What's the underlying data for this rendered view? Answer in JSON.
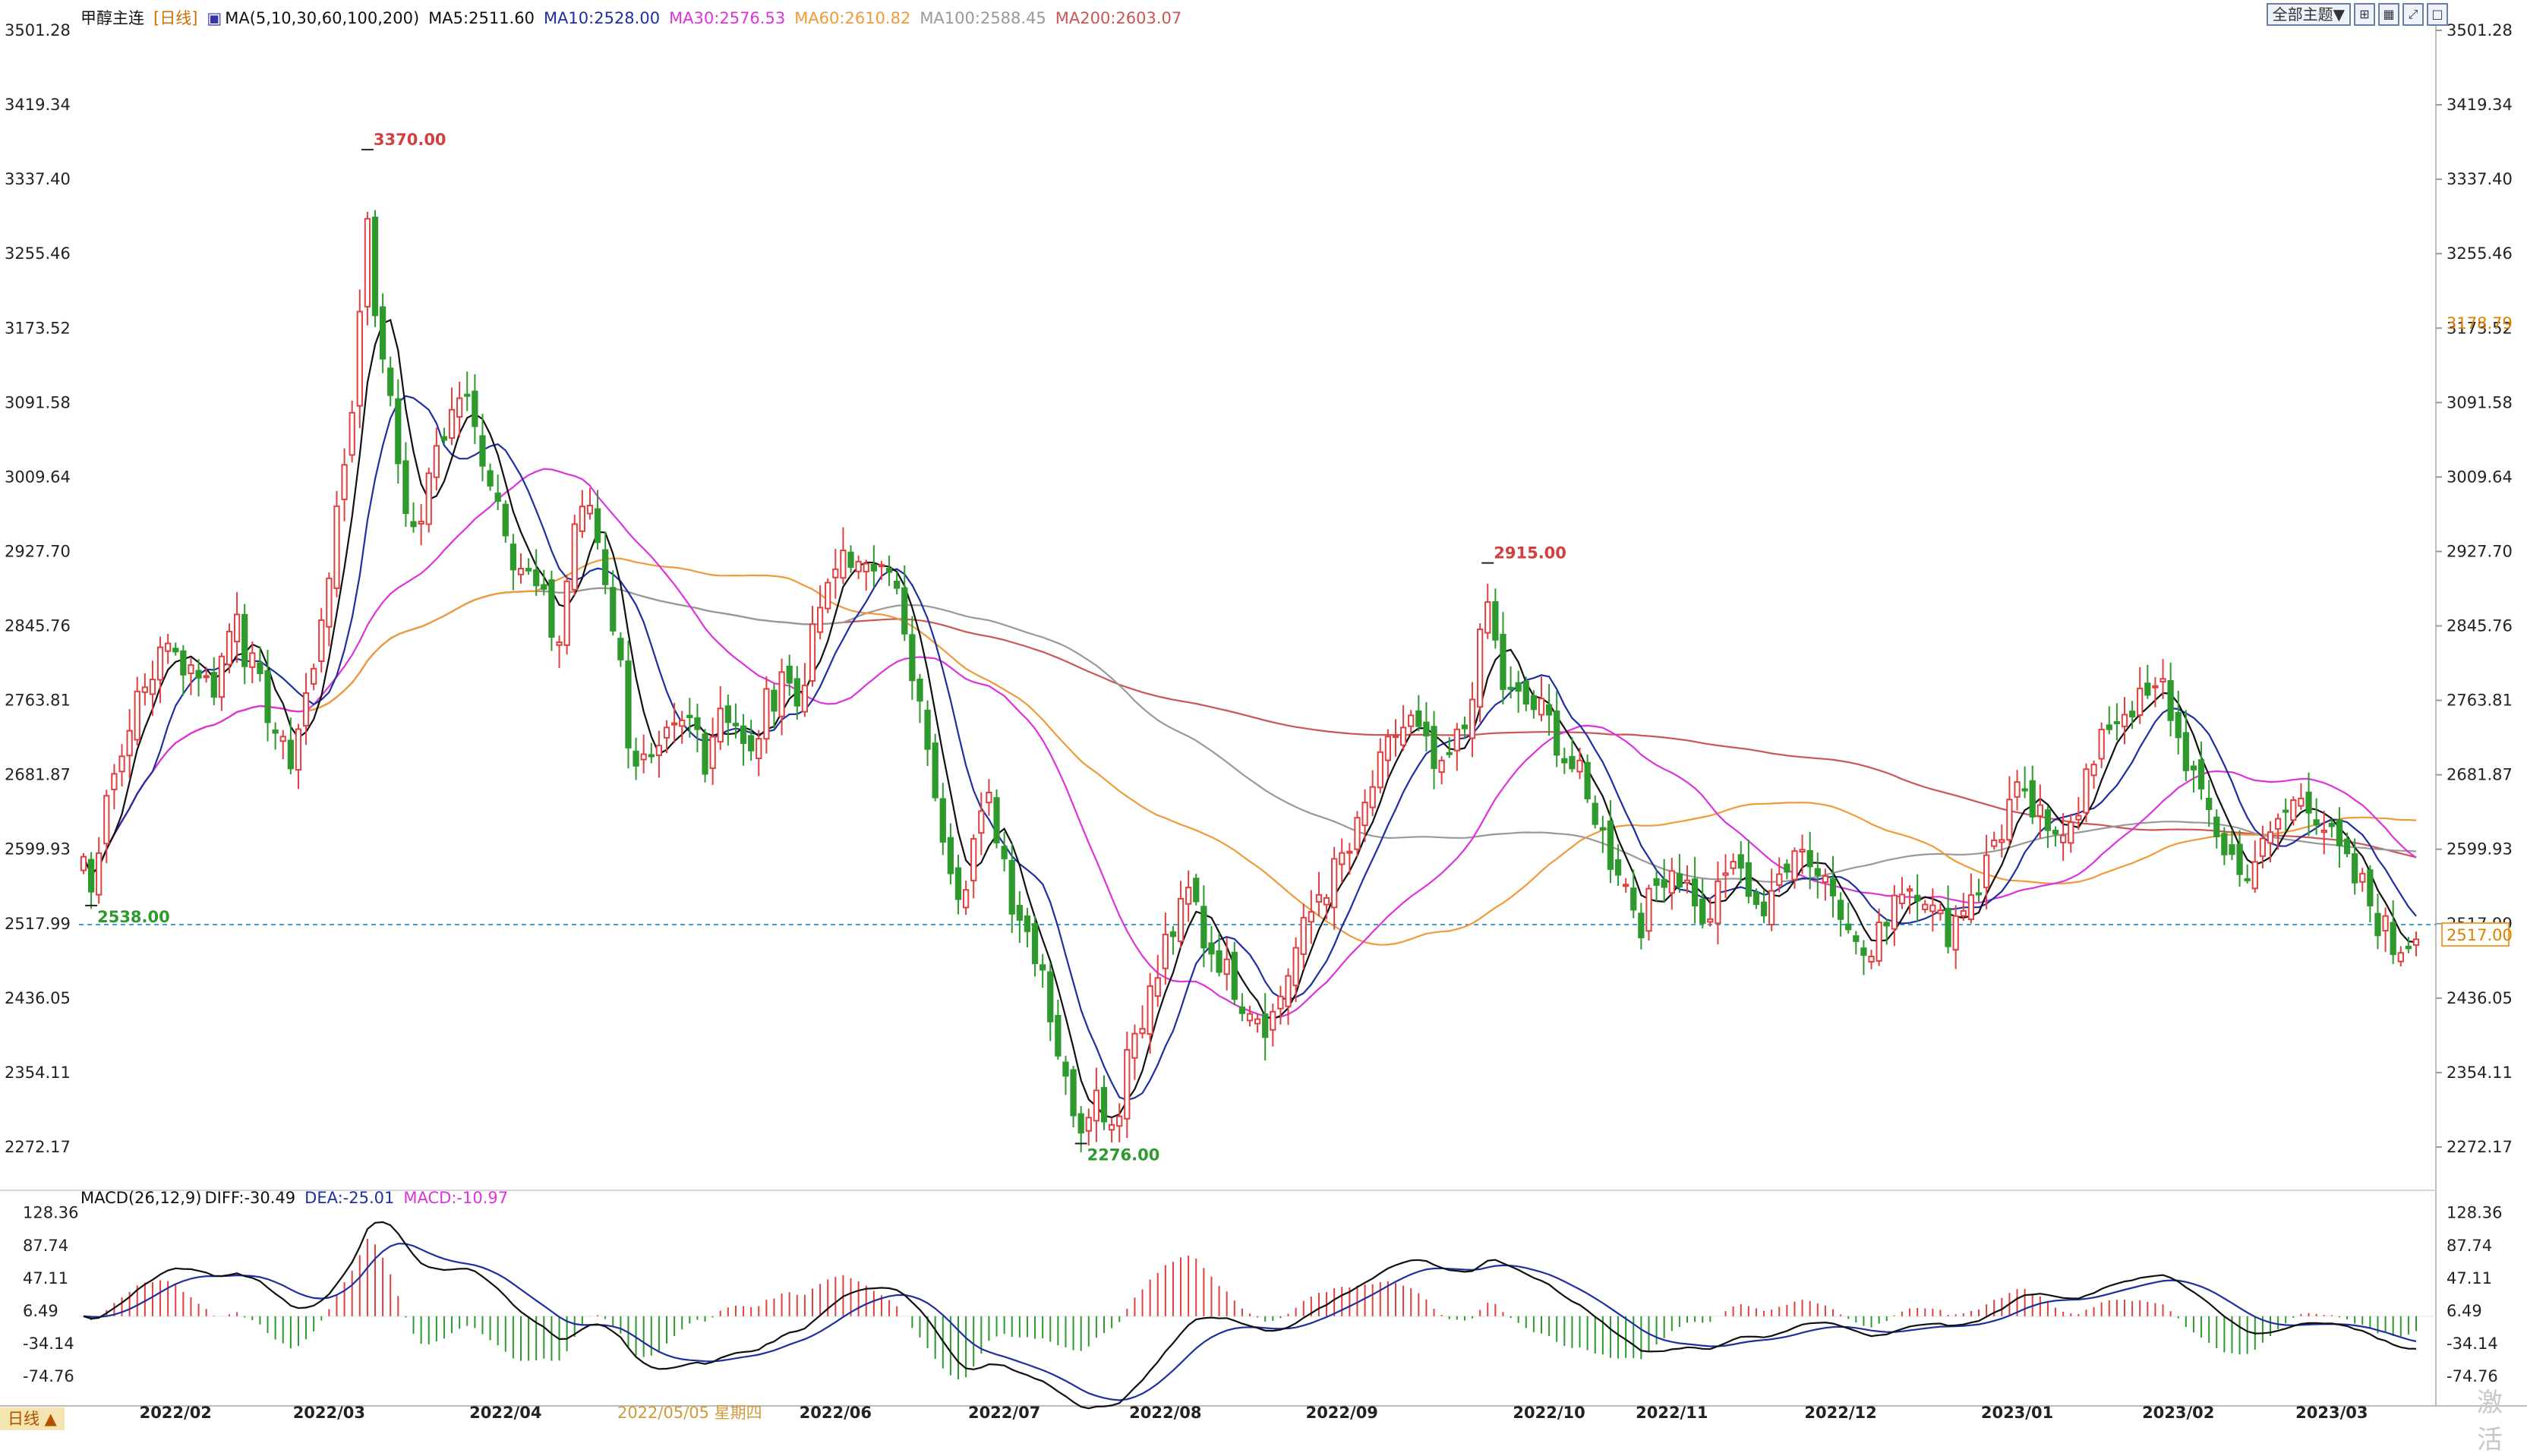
{
  "instrument": {
    "name": "甲醇主连",
    "period_label": "[日线]"
  },
  "price_legend": {
    "ma_label": "MA(5,10,30,60,100,200)",
    "ma5": "MA5:2511.60",
    "ma10": "MA10:2528.00",
    "ma30": "MA30:2576.53",
    "ma60": "MA60:2610.82",
    "ma100": "MA100:2588.45",
    "ma200": "MA200:2603.07"
  },
  "macd_legend": {
    "label": "MACD(26,12,9)",
    "diff": "DIFF:-30.49",
    "dea": "DEA:-25.01",
    "macd": "MACD:-10.97"
  },
  "toolbar": {
    "theme_button": "全部主题▼",
    "icons": [
      "layout-icon",
      "grid-icon",
      "expand-icon",
      "fullscreen-icon"
    ]
  },
  "bottom_tab": "日线 ▲",
  "watermark": "激活",
  "colors": {
    "up": "#e04040",
    "down": "#2e9a2e",
    "ma5": "#111111",
    "ma10": "#1f2f9f",
    "ma30": "#dd33dd",
    "ma60": "#f09a3a",
    "ma100": "#999999",
    "ma200": "#cc5555",
    "grid_cursor": "#3f9fd0"
  },
  "chart_data": [
    {
      "type": "candlestick",
      "title": "甲醇主连 [日线]",
      "ylim": [
        2231.2,
        3501.28
      ],
      "y_ticks": [
        "3501.28",
        "3419.34",
        "3337.40",
        "3255.46",
        "3173.52",
        "3091.58",
        "3009.64",
        "2927.70",
        "2845.76",
        "2763.81",
        "2681.87",
        "2599.93",
        "2517.99",
        "2436.05",
        "2354.11",
        "2272.17"
      ],
      "x_ticks": [
        "2022/02",
        "2022/03",
        "2022/04",
        "2022/05/05 星期四",
        "2022/06",
        "2022/07",
        "2022/08",
        "2022/09",
        "2022/10",
        "2022/11",
        "2022/12",
        "2023/01",
        "2023/02",
        "2023/03"
      ],
      "annotations": {
        "high_3370": "3370.00",
        "high_2915": "2915.00",
        "low_2276": "2276.00",
        "low_2538": "2538.00"
      },
      "right_labels": {
        "overlay_tick": "3178.79",
        "last_price": "2517.00",
        "last_tick": "2517.99"
      },
      "anchors": [
        {
          "date": "2022-01-14",
          "close": 2592
        },
        {
          "date": "2022-01-17",
          "close": 2551
        },
        {
          "date": "2022-01-19",
          "close": 2668
        },
        {
          "date": "2022-01-21",
          "close": 2702
        },
        {
          "date": "2022-01-25",
          "close": 2760
        },
        {
          "date": "2022-01-27",
          "close": 2790
        },
        {
          "date": "2022-01-28",
          "close": 2830
        },
        {
          "date": "2022-02-08",
          "close": 2780
        },
        {
          "date": "2022-02-11",
          "close": 2870
        },
        {
          "date": "2022-02-15",
          "close": 2800
        },
        {
          "date": "2022-02-18",
          "close": 2730
        },
        {
          "date": "2022-02-22",
          "close": 2700
        },
        {
          "date": "2022-02-24",
          "close": 2770
        },
        {
          "date": "2022-02-28",
          "close": 2860
        },
        {
          "date": "2022-03-02",
          "close": 2960
        },
        {
          "date": "2022-03-04",
          "close": 3090
        },
        {
          "date": "2022-03-07",
          "close": 3190
        },
        {
          "date": "2022-03-08",
          "close": 3300
        },
        {
          "date": "2022-03-09",
          "close": 3200
        },
        {
          "date": "2022-03-10",
          "close": 3130
        },
        {
          "date": "2022-03-14",
          "close": 3030
        },
        {
          "date": "2022-03-16",
          "close": 2940
        },
        {
          "date": "2022-03-18",
          "close": 3000
        },
        {
          "date": "2022-03-22",
          "close": 3060
        },
        {
          "date": "2022-03-24",
          "close": 3100
        },
        {
          "date": "2022-03-28",
          "close": 3060
        },
        {
          "date": "2022-03-30",
          "close": 3010
        },
        {
          "date": "2022-04-01",
          "close": 2960
        },
        {
          "date": "2022-04-06",
          "close": 2900
        },
        {
          "date": "2022-04-08",
          "close": 2870
        },
        {
          "date": "2022-04-12",
          "close": 2830
        },
        {
          "date": "2022-04-14",
          "close": 2960
        },
        {
          "date": "2022-04-18",
          "close": 2980
        },
        {
          "date": "2022-04-20",
          "close": 2900
        },
        {
          "date": "2022-04-22",
          "close": 2800
        },
        {
          "date": "2022-04-26",
          "close": 2700
        },
        {
          "date": "2022-04-28",
          "close": 2690
        },
        {
          "date": "2022-05-05",
          "close": 2740
        },
        {
          "date": "2022-05-09",
          "close": 2700
        },
        {
          "date": "2022-05-11",
          "close": 2760
        },
        {
          "date": "2022-05-13",
          "close": 2740
        },
        {
          "date": "2022-05-17",
          "close": 2700
        },
        {
          "date": "2022-05-19",
          "close": 2760
        },
        {
          "date": "2022-05-23",
          "close": 2800
        },
        {
          "date": "2022-05-25",
          "close": 2760
        },
        {
          "date": "2022-05-27",
          "close": 2830
        },
        {
          "date": "2022-05-31",
          "close": 2880
        },
        {
          "date": "2022-06-02",
          "close": 2930
        },
        {
          "date": "2022-06-07",
          "close": 2900
        },
        {
          "date": "2022-06-09",
          "close": 2930
        },
        {
          "date": "2022-06-13",
          "close": 2880
        },
        {
          "date": "2022-06-15",
          "close": 2780
        },
        {
          "date": "2022-06-17",
          "close": 2720
        },
        {
          "date": "2022-06-21",
          "close": 2620
        },
        {
          "date": "2022-06-23",
          "close": 2560
        },
        {
          "date": "2022-06-27",
          "close": 2610
        },
        {
          "date": "2022-06-29",
          "close": 2650
        },
        {
          "date": "2022-07-01",
          "close": 2590
        },
        {
          "date": "2022-07-05",
          "close": 2530
        },
        {
          "date": "2022-07-07",
          "close": 2490
        },
        {
          "date": "2022-07-11",
          "close": 2420
        },
        {
          "date": "2022-07-13",
          "close": 2340
        },
        {
          "date": "2022-07-15",
          "close": 2300
        },
        {
          "date": "2022-07-19",
          "close": 2330
        },
        {
          "date": "2022-07-21",
          "close": 2300
        },
        {
          "date": "2022-07-25",
          "close": 2380
        },
        {
          "date": "2022-07-27",
          "close": 2420
        },
        {
          "date": "2022-07-29",
          "close": 2460
        },
        {
          "date": "2022-08-02",
          "close": 2510
        },
        {
          "date": "2022-08-04",
          "close": 2550
        },
        {
          "date": "2022-08-08",
          "close": 2500
        },
        {
          "date": "2022-08-10",
          "close": 2480
        },
        {
          "date": "2022-08-12",
          "close": 2450
        },
        {
          "date": "2022-08-16",
          "close": 2430
        },
        {
          "date": "2022-08-18",
          "close": 2410
        },
        {
          "date": "2022-08-22",
          "close": 2440
        },
        {
          "date": "2022-08-24",
          "close": 2490
        },
        {
          "date": "2022-08-26",
          "close": 2530
        },
        {
          "date": "2022-08-30",
          "close": 2560
        },
        {
          "date": "2022-09-01",
          "close": 2590
        },
        {
          "date": "2022-09-05",
          "close": 2620
        },
        {
          "date": "2022-09-07",
          "close": 2670
        },
        {
          "date": "2022-09-09",
          "close": 2710
        },
        {
          "date": "2022-09-14",
          "close": 2740
        },
        {
          "date": "2022-09-16",
          "close": 2710
        },
        {
          "date": "2022-09-20",
          "close": 2680
        },
        {
          "date": "2022-09-22",
          "close": 2720
        },
        {
          "date": "2022-09-26",
          "close": 2780
        },
        {
          "date": "2022-09-28",
          "close": 2870
        },
        {
          "date": "2022-09-30",
          "close": 2780
        },
        {
          "date": "2022-10-10",
          "close": 2740
        },
        {
          "date": "2022-10-12",
          "close": 2700
        },
        {
          "date": "2022-10-14",
          "close": 2680
        },
        {
          "date": "2022-10-18",
          "close": 2640
        },
        {
          "date": "2022-10-20",
          "close": 2590
        },
        {
          "date": "2022-10-24",
          "close": 2560
        },
        {
          "date": "2022-10-26",
          "close": 2520
        },
        {
          "date": "2022-10-28",
          "close": 2560
        },
        {
          "date": "2022-11-01",
          "close": 2580
        },
        {
          "date": "2022-11-03",
          "close": 2560
        },
        {
          "date": "2022-11-07",
          "close": 2510
        },
        {
          "date": "2022-11-09",
          "close": 2550
        },
        {
          "date": "2022-11-11",
          "close": 2590
        },
        {
          "date": "2022-11-15",
          "close": 2560
        },
        {
          "date": "2022-11-17",
          "close": 2530
        },
        {
          "date": "2022-11-21",
          "close": 2570
        },
        {
          "date": "2022-11-23",
          "close": 2610
        },
        {
          "date": "2022-11-25",
          "close": 2590
        },
        {
          "date": "2022-11-29",
          "close": 2570
        },
        {
          "date": "2022-12-01",
          "close": 2540
        },
        {
          "date": "2022-12-05",
          "close": 2490
        },
        {
          "date": "2022-12-07",
          "close": 2480
        },
        {
          "date": "2022-12-09",
          "close": 2530
        },
        {
          "date": "2022-12-13",
          "close": 2560
        },
        {
          "date": "2022-12-15",
          "close": 2560
        },
        {
          "date": "2022-12-19",
          "close": 2530
        },
        {
          "date": "2022-12-21",
          "close": 2510
        },
        {
          "date": "2022-12-23",
          "close": 2540
        },
        {
          "date": "2022-12-27",
          "close": 2560
        },
        {
          "date": "2022-12-29",
          "close": 2610
        },
        {
          "date": "2023-01-03",
          "close": 2660
        },
        {
          "date": "2023-01-05",
          "close": 2640
        },
        {
          "date": "2023-01-09",
          "close": 2610
        },
        {
          "date": "2023-01-11",
          "close": 2630
        },
        {
          "date": "2023-01-13",
          "close": 2650
        },
        {
          "date": "2023-01-17",
          "close": 2690
        },
        {
          "date": "2023-01-19",
          "close": 2740
        },
        {
          "date": "2023-01-30",
          "close": 2780
        },
        {
          "date": "2023-02-01",
          "close": 2720
        },
        {
          "date": "2023-02-03",
          "close": 2680
        },
        {
          "date": "2023-02-07",
          "close": 2640
        },
        {
          "date": "2023-02-09",
          "close": 2600
        },
        {
          "date": "2023-02-13",
          "close": 2570
        },
        {
          "date": "2023-02-15",
          "close": 2590
        },
        {
          "date": "2023-02-17",
          "close": 2610
        },
        {
          "date": "2023-02-21",
          "close": 2640
        },
        {
          "date": "2023-02-23",
          "close": 2660
        },
        {
          "date": "2023-02-27",
          "close": 2640
        },
        {
          "date": "2023-03-01",
          "close": 2610
        },
        {
          "date": "2023-03-03",
          "close": 2580
        },
        {
          "date": "2023-03-07",
          "close": 2560
        },
        {
          "date": "2023-03-09",
          "close": 2520
        },
        {
          "date": "2023-03-13",
          "close": 2490
        },
        {
          "date": "2023-03-15",
          "close": 2500
        },
        {
          "date": "2023-03-16",
          "close": 2517
        }
      ]
    },
    {
      "type": "bar",
      "title": "MACD(26,12,9)",
      "ylim": [
        -100,
        145
      ],
      "y_ticks": [
        "128.36",
        "87.74",
        "47.11",
        "6.49",
        "-34.14",
        "-74.76"
      ]
    }
  ]
}
